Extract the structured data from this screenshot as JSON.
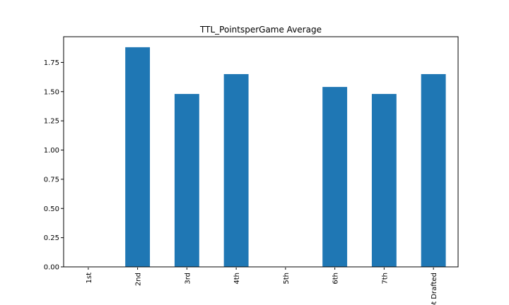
{
  "chart_data": {
    "type": "bar",
    "title": "TTL_PointsperGame Average",
    "xlabel": "",
    "ylabel": "",
    "categories": [
      "1st",
      "2nd",
      "3rd",
      "4th",
      "5th",
      "6th",
      "7th",
      "Not Drafted"
    ],
    "values": [
      0,
      1.88,
      1.48,
      1.65,
      0,
      1.54,
      1.48,
      1.65
    ],
    "ylim": [
      0,
      1.97
    ],
    "yticks": [
      "0.00",
      "0.25",
      "0.50",
      "0.75",
      "1.00",
      "1.25",
      "1.50",
      "1.75"
    ],
    "bar_color": "#1f77b4",
    "grid": false,
    "legend": "none"
  }
}
